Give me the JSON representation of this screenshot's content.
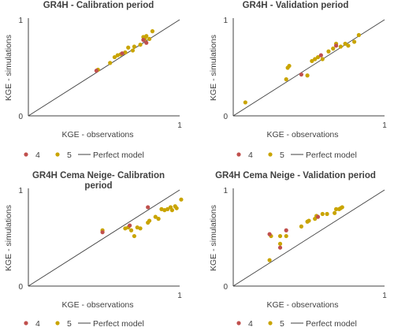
{
  "colors": {
    "series4": "#C0504D",
    "series5": "#C9A400",
    "perfect_line": "#404040",
    "axis": "#404040"
  },
  "chart_data": [
    {
      "type": "scatter",
      "title": "GR4H - Calibration  period",
      "xlabel": "KGE - observations",
      "ylabel": "KGE - simulations",
      "xlim": [
        0,
        1
      ],
      "ylim": [
        0,
        1
      ],
      "x_ticks": [
        "0",
        "1"
      ],
      "y_ticks": [
        "0",
        "1"
      ],
      "grid": false,
      "legend": "bottom",
      "series": [
        {
          "name": "4",
          "points": [
            [
              0.45,
              0.47
            ],
            [
              0.62,
              0.65
            ],
            [
              0.76,
              0.79
            ],
            [
              0.78,
              0.76
            ]
          ]
        },
        {
          "name": "5",
          "points": [
            [
              0.46,
              0.48
            ],
            [
              0.54,
              0.55
            ],
            [
              0.57,
              0.61
            ],
            [
              0.59,
              0.63
            ],
            [
              0.61,
              0.64
            ],
            [
              0.64,
              0.66
            ],
            [
              0.66,
              0.71
            ],
            [
              0.69,
              0.68
            ],
            [
              0.7,
              0.72
            ],
            [
              0.74,
              0.74
            ],
            [
              0.76,
              0.82
            ],
            [
              0.77,
              0.8
            ],
            [
              0.78,
              0.83
            ],
            [
              0.8,
              0.8
            ],
            [
              0.82,
              0.88
            ]
          ]
        },
        {
          "name": "Perfect model",
          "line": [
            [
              0,
              0
            ],
            [
              1,
              1
            ]
          ]
        }
      ]
    },
    {
      "type": "scatter",
      "title": "GR4H - Validation  period",
      "xlabel": "KGE - observations",
      "ylabel": "KGE - simulations",
      "xlim": [
        0,
        1
      ],
      "ylim": [
        0,
        1
      ],
      "x_ticks": [
        "0",
        "1"
      ],
      "y_ticks": [
        "0",
        "1"
      ],
      "grid": false,
      "legend": "bottom",
      "series": [
        {
          "name": "4",
          "points": [
            [
              0.45,
              0.43
            ],
            [
              0.58,
              0.63
            ],
            [
              0.68,
              0.73
            ]
          ]
        },
        {
          "name": "5",
          "points": [
            [
              0.08,
              0.14
            ],
            [
              0.35,
              0.38
            ],
            [
              0.36,
              0.5
            ],
            [
              0.37,
              0.52
            ],
            [
              0.49,
              0.42
            ],
            [
              0.52,
              0.57
            ],
            [
              0.54,
              0.59
            ],
            [
              0.56,
              0.61
            ],
            [
              0.59,
              0.59
            ],
            [
              0.63,
              0.67
            ],
            [
              0.66,
              0.7
            ],
            [
              0.68,
              0.75
            ],
            [
              0.71,
              0.72
            ],
            [
              0.74,
              0.75
            ],
            [
              0.76,
              0.73
            ],
            [
              0.8,
              0.77
            ],
            [
              0.83,
              0.84
            ]
          ]
        },
        {
          "name": "Perfect model",
          "line": [
            [
              0,
              0
            ],
            [
              1,
              1
            ]
          ]
        }
      ]
    },
    {
      "type": "scatter",
      "title": "GR4H Cema Neige- Calibration period",
      "xlabel": "KGE - observations",
      "ylabel": "KGE - simulations",
      "xlim": [
        0,
        1
      ],
      "ylim": [
        0,
        1
      ],
      "x_ticks": [
        "0",
        "1"
      ],
      "y_ticks": [
        "0",
        "1"
      ],
      "grid": false,
      "legend": "bottom",
      "series": [
        {
          "name": "4",
          "points": [
            [
              0.49,
              0.56
            ],
            [
              0.67,
              0.63
            ],
            [
              0.79,
              0.82
            ]
          ]
        },
        {
          "name": "5",
          "points": [
            [
              0.49,
              0.58
            ],
            [
              0.64,
              0.6
            ],
            [
              0.66,
              0.61
            ],
            [
              0.68,
              0.58
            ],
            [
              0.7,
              0.52
            ],
            [
              0.72,
              0.61
            ],
            [
              0.74,
              0.6
            ],
            [
              0.79,
              0.66
            ],
            [
              0.8,
              0.68
            ],
            [
              0.84,
              0.72
            ],
            [
              0.86,
              0.7
            ],
            [
              0.88,
              0.8
            ],
            [
              0.9,
              0.79
            ],
            [
              0.92,
              0.8
            ],
            [
              0.94,
              0.82
            ],
            [
              0.95,
              0.79
            ],
            [
              0.97,
              0.83
            ],
            [
              0.98,
              0.81
            ],
            [
              1.01,
              0.9
            ]
          ]
        },
        {
          "name": "Perfect model",
          "line": [
            [
              0,
              0
            ],
            [
              1,
              1
            ]
          ]
        }
      ]
    },
    {
      "type": "scatter",
      "title": "GR4H Cema Neige - Validation period",
      "xlabel": "KGE - observations",
      "ylabel": "KGE - simulations",
      "xlim": [
        0,
        1
      ],
      "ylim": [
        0,
        1
      ],
      "x_ticks": [
        "0",
        "1"
      ],
      "y_ticks": [
        "0",
        "1"
      ],
      "grid": false,
      "legend": "bottom",
      "series": [
        {
          "name": "4",
          "points": [
            [
              0.24,
              0.54
            ],
            [
              0.31,
              0.4
            ],
            [
              0.35,
              0.58
            ],
            [
              0.56,
              0.72
            ]
          ]
        },
        {
          "name": "5",
          "points": [
            [
              0.24,
              0.27
            ],
            [
              0.25,
              0.52
            ],
            [
              0.31,
              0.44
            ],
            [
              0.31,
              0.52
            ],
            [
              0.35,
              0.52
            ],
            [
              0.45,
              0.62
            ],
            [
              0.49,
              0.67
            ],
            [
              0.5,
              0.68
            ],
            [
              0.54,
              0.7
            ],
            [
              0.55,
              0.73
            ],
            [
              0.59,
              0.75
            ],
            [
              0.62,
              0.75
            ],
            [
              0.67,
              0.76
            ],
            [
              0.68,
              0.8
            ],
            [
              0.7,
              0.8
            ],
            [
              0.71,
              0.81
            ],
            [
              0.72,
              0.82
            ]
          ]
        },
        {
          "name": "Perfect model",
          "line": [
            [
              0,
              0
            ],
            [
              1,
              1
            ]
          ]
        }
      ]
    }
  ]
}
